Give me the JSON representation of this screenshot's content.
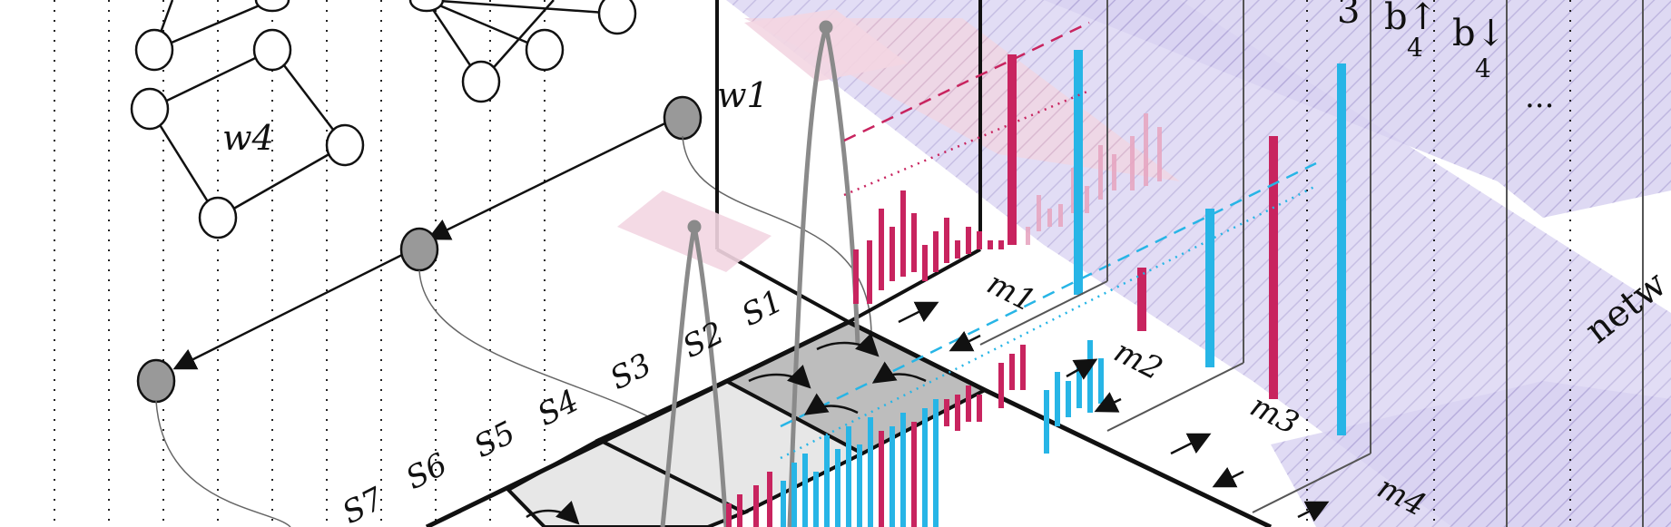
{
  "nodes_top": {
    "w1": "w1",
    "w4": "w4"
  },
  "sites": [
    "S1",
    "S2",
    "S3",
    "S4",
    "S5",
    "S6",
    "S7"
  ],
  "modes": [
    "m1",
    "m2",
    "m3",
    "m4"
  ],
  "spin_labels": {
    "three": "3",
    "b4_up": "b↑",
    "b4_up_sub": "4",
    "b4_down": "b↓",
    "b4_down_sub": "4"
  },
  "ellipsis": "...",
  "network_label": "netw",
  "colors": {
    "magenta": "#c8245f",
    "cyan": "#27b5e6",
    "purple_band": "#c9c2ec",
    "pink_band": "#f1d8e3",
    "gray": "#8a8a8a"
  }
}
